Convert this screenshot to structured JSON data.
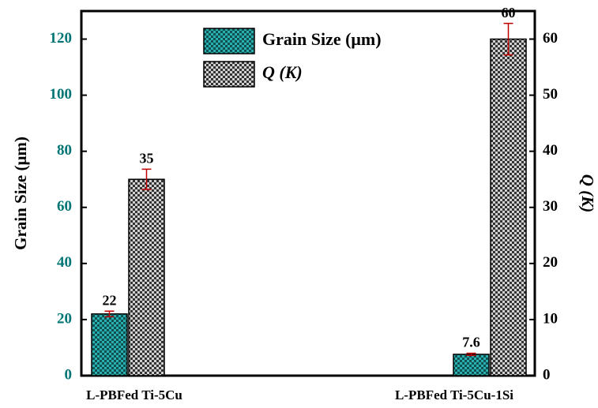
{
  "chart_data": {
    "type": "bar",
    "categories": [
      "L-PBFed Ti-5Cu",
      "L-PBFed Ti-5Cu-1Si"
    ],
    "series": [
      {
        "name": "Grain Size (μm)",
        "color": "#2ab0b0",
        "values": [
          22,
          7.6
        ],
        "errors": [
          1,
          0.4
        ],
        "axis": "y"
      },
      {
        "name": "Q (K)",
        "color": "#8a8a8a",
        "values": [
          35,
          60
        ],
        "errors": [
          1.8,
          2.8
        ],
        "axis": "y2"
      }
    ],
    "ylabel": "Grain Size (μm)",
    "y2label": "Q (K)",
    "ylim": [
      0,
      130
    ],
    "yticks": [
      0,
      20,
      40,
      60,
      80,
      100,
      120
    ],
    "y2lim": [
      0,
      65
    ],
    "y2ticks": [
      0,
      10,
      20,
      30,
      40,
      50,
      60
    ],
    "legend": "top-center"
  }
}
